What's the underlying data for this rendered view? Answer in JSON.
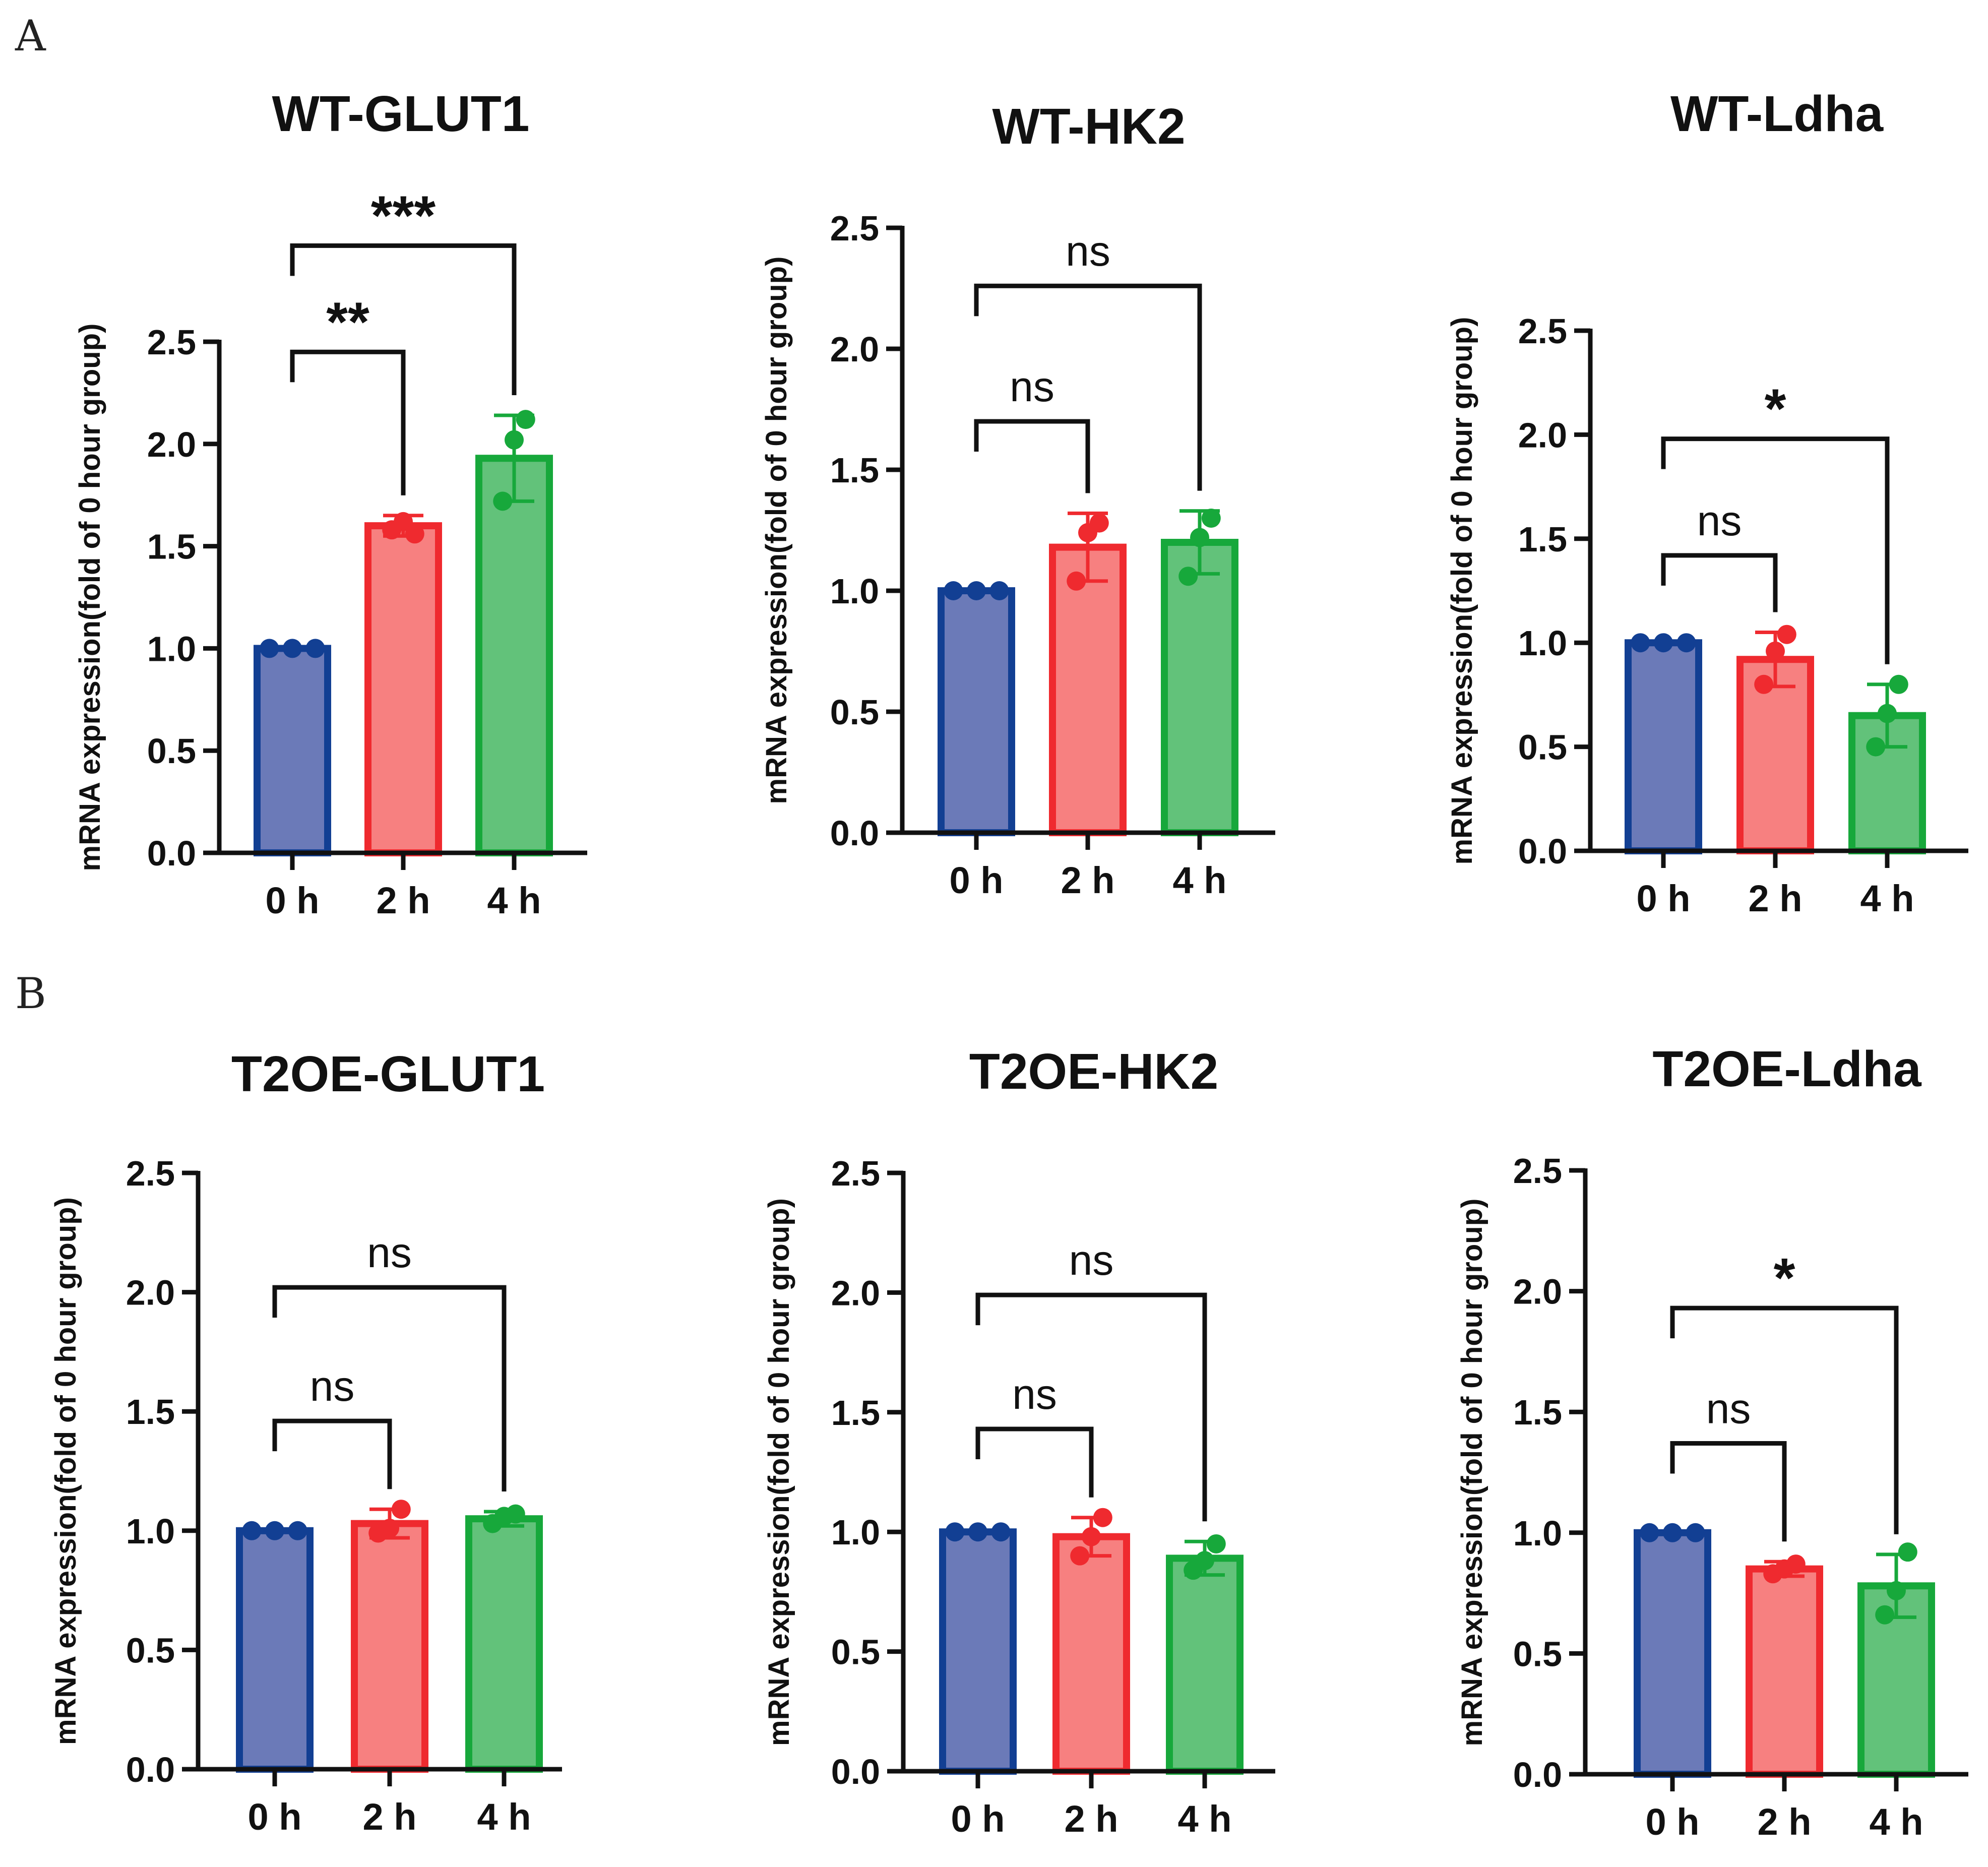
{
  "panel_labels": [
    "A",
    "B"
  ],
  "chart_data": [
    {
      "type": "bar",
      "panel": "A",
      "title": "WT-GLUT1",
      "ylabel": "mRNA expression(fold of 0 hour group)",
      "categories": [
        "0 h",
        "2 h",
        "4 h"
      ],
      "values": [
        1.0,
        1.6,
        1.93
      ],
      "errors": [
        0.0,
        0.05,
        0.21
      ],
      "points": [
        [
          1.0,
          1.0,
          1.0
        ],
        [
          1.58,
          1.62,
          1.56
        ],
        [
          1.72,
          2.02,
          2.12
        ]
      ],
      "ylim": [
        0,
        2.5
      ],
      "yticks": [
        "0.0",
        "0.5",
        "1.0",
        "1.5",
        "2.0",
        "2.5"
      ],
      "comparisons": [
        {
          "from": 0,
          "to": 1,
          "label": "**"
        },
        {
          "from": 0,
          "to": 2,
          "label": "***"
        }
      ]
    },
    {
      "type": "bar",
      "panel": "A",
      "title": "WT-HK2",
      "ylabel": "mRNA expression(fold of 0 hour group)",
      "categories": [
        "0 h",
        "2 h",
        "4 h"
      ],
      "values": [
        1.0,
        1.18,
        1.2
      ],
      "errors": [
        0.0,
        0.14,
        0.13
      ],
      "points": [
        [
          1.0,
          1.0,
          1.0
        ],
        [
          1.04,
          1.24,
          1.28
        ],
        [
          1.06,
          1.22,
          1.3
        ]
      ],
      "ylim": [
        0,
        2.5
      ],
      "yticks": [
        "0.0",
        "0.5",
        "1.0",
        "1.5",
        "2.0",
        "2.5"
      ],
      "comparisons": [
        {
          "from": 0,
          "to": 1,
          "label": "ns"
        },
        {
          "from": 0,
          "to": 2,
          "label": "ns"
        }
      ]
    },
    {
      "type": "bar",
      "panel": "A",
      "title": "WT-Ldha",
      "ylabel": "mRNA expression(fold of 0 hour group)",
      "categories": [
        "0 h",
        "2 h",
        "4 h"
      ],
      "values": [
        1.0,
        0.92,
        0.65
      ],
      "errors": [
        0.0,
        0.13,
        0.15
      ],
      "points": [
        [
          1.0,
          1.0,
          1.0
        ],
        [
          0.8,
          0.96,
          1.04
        ],
        [
          0.5,
          0.66,
          0.8
        ]
      ],
      "ylim": [
        0,
        2.5
      ],
      "yticks": [
        "0.0",
        "0.5",
        "1.0",
        "1.5",
        "2.0",
        "2.5"
      ],
      "comparisons": [
        {
          "from": 0,
          "to": 1,
          "label": "ns"
        },
        {
          "from": 0,
          "to": 2,
          "label": "*"
        }
      ]
    },
    {
      "type": "bar",
      "panel": "B",
      "title": "T2OE-GLUT1",
      "ylabel": "mRNA expression(fold of 0 hour group)",
      "categories": [
        "0 h",
        "2 h",
        "4 h"
      ],
      "values": [
        1.0,
        1.03,
        1.05
      ],
      "errors": [
        0.0,
        0.06,
        0.03
      ],
      "points": [
        [
          1.0,
          1.0,
          1.0
        ],
        [
          0.99,
          1.01,
          1.09
        ],
        [
          1.03,
          1.06,
          1.07
        ]
      ],
      "ylim": [
        0,
        2.5
      ],
      "yticks": [
        "0.0",
        "0.5",
        "1.0",
        "1.5",
        "2.0",
        "2.5"
      ],
      "comparisons": [
        {
          "from": 0,
          "to": 1,
          "label": "ns"
        },
        {
          "from": 0,
          "to": 2,
          "label": "ns"
        }
      ]
    },
    {
      "type": "bar",
      "panel": "B",
      "title": "T2OE-HK2",
      "ylabel": "mRNA expression(fold of 0 hour group)",
      "categories": [
        "0 h",
        "2 h",
        "4 h"
      ],
      "values": [
        1.0,
        0.98,
        0.89
      ],
      "errors": [
        0.0,
        0.08,
        0.07
      ],
      "points": [
        [
          1.0,
          1.0,
          1.0
        ],
        [
          0.9,
          0.98,
          1.06
        ],
        [
          0.84,
          0.88,
          0.95
        ]
      ],
      "ylim": [
        0,
        2.5
      ],
      "yticks": [
        "0.0",
        "0.5",
        "1.0",
        "1.5",
        "2.0",
        "2.5"
      ],
      "comparisons": [
        {
          "from": 0,
          "to": 1,
          "label": "ns"
        },
        {
          "from": 0,
          "to": 2,
          "label": "ns"
        }
      ]
    },
    {
      "type": "bar",
      "panel": "B",
      "title": "T2OE-Ldha",
      "ylabel": "mRNA expression(fold of 0 hour group)",
      "categories": [
        "0 h",
        "2 h",
        "4 h"
      ],
      "values": [
        1.0,
        0.85,
        0.78
      ],
      "errors": [
        0.0,
        0.03,
        0.13
      ],
      "points": [
        [
          1.0,
          1.0,
          1.0
        ],
        [
          0.83,
          0.85,
          0.87
        ],
        [
          0.66,
          0.76,
          0.92
        ]
      ],
      "ylim": [
        0,
        2.5
      ],
      "yticks": [
        "0.0",
        "0.5",
        "1.0",
        "1.5",
        "2.0",
        "2.5"
      ],
      "comparisons": [
        {
          "from": 0,
          "to": 1,
          "label": "ns"
        },
        {
          "from": 0,
          "to": 2,
          "label": "*"
        }
      ]
    }
  ],
  "colors": {
    "bar_fill": [
      "#6b7ab8",
      "#f78080",
      "#62c27a"
    ],
    "bar_edge": [
      "#123f93",
      "#ef2a2f",
      "#17a83b"
    ],
    "axis": "#111111"
  }
}
